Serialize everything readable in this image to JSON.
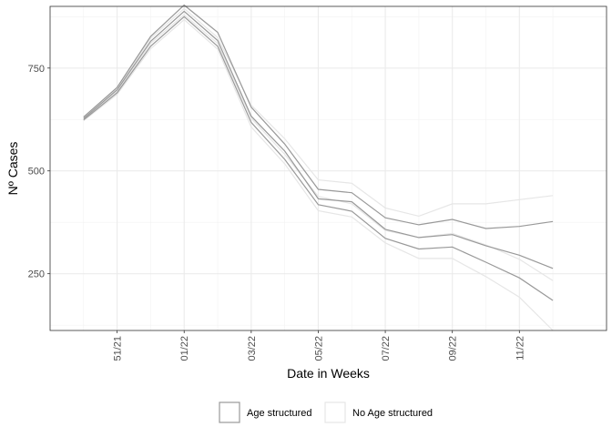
{
  "chart_data": {
    "type": "line",
    "xlabel": "Date in Weeks",
    "ylabel": "Nº Cases",
    "x_ticks": [
      "51/21",
      "01/22",
      "03/22",
      "05/22",
      "07/22",
      "09/22",
      "11/22"
    ],
    "y_ticks": [
      250,
      500,
      750
    ],
    "x_range": [
      -1.0,
      15.6
    ],
    "y_range": [
      112,
      900
    ],
    "grid": true,
    "legend_position": "bottom",
    "legend": [
      {
        "label": "Age structured",
        "color": "#999999"
      },
      {
        "label": "No Age structured",
        "color": "#e6e6e6"
      }
    ],
    "weeks": [
      0,
      1,
      2,
      3,
      4,
      5,
      6,
      7,
      8,
      9,
      10,
      11,
      12,
      13,
      14
    ],
    "series": [
      {
        "group": "No Age structured",
        "color": "#e6e6e6",
        "values": [
          622,
          686,
          797,
          868,
          796,
          607,
          517,
          403,
          388,
          325,
          287,
          287,
          243,
          193,
          112
        ]
      },
      {
        "group": "No Age structured",
        "color": "#e6e6e6",
        "values": [
          626,
          693,
          810,
          880,
          810,
          628,
          540,
          438,
          420,
          355,
          338,
          348,
          320,
          285,
          233
        ]
      },
      {
        "group": "No Age structured",
        "color": "#e6e6e6",
        "values": [
          630,
          700,
          822,
          895,
          824,
          660,
          578,
          478,
          470,
          410,
          390,
          420,
          420,
          430,
          440
        ]
      },
      {
        "group": "Age structured",
        "color": "#999999",
        "values": [
          624,
          690,
          803,
          875,
          803,
          618,
          528,
          418,
          402,
          336,
          310,
          315,
          278,
          240,
          185
        ]
      },
      {
        "group": "Age structured",
        "color": "#999999",
        "values": [
          627,
          697,
          815,
          888,
          817,
          633,
          548,
          432,
          425,
          358,
          338,
          345,
          318,
          295,
          263
        ]
      },
      {
        "group": "Age structured",
        "color": "#999999",
        "values": [
          631,
          703,
          827,
          903,
          837,
          655,
          565,
          455,
          447,
          386,
          369,
          382,
          360,
          365,
          377
        ]
      }
    ]
  }
}
